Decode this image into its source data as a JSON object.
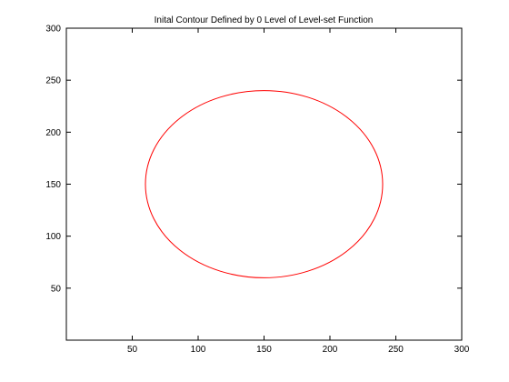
{
  "chart_data": {
    "type": "line",
    "title": "Inital Contour Defined by 0 Level of Level-set Function",
    "xlabel": "",
    "ylabel": "",
    "xlim": [
      0,
      300
    ],
    "ylim": [
      0,
      300
    ],
    "xticks": [
      50,
      100,
      150,
      200,
      250,
      300
    ],
    "yticks": [
      50,
      100,
      150,
      200,
      250,
      300
    ],
    "grid": false,
    "series": [
      {
        "shape": "ellipse",
        "center": [
          150,
          150
        ],
        "radius_x": 90,
        "radius_y": 90,
        "color": "#ff0000"
      }
    ]
  }
}
